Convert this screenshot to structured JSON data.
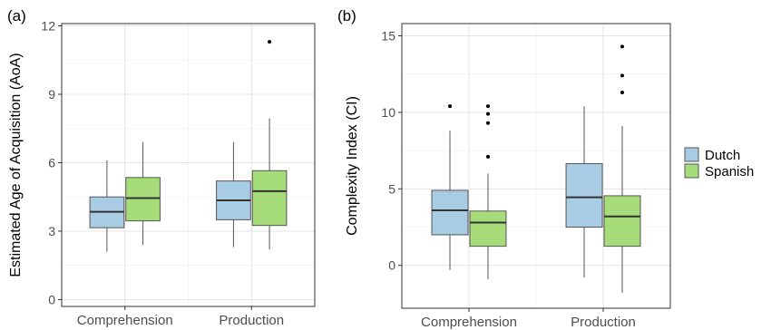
{
  "panels": {
    "a": {
      "label": "(a)"
    },
    "b": {
      "label": "(b)"
    }
  },
  "legend": {
    "items": [
      {
        "label": "Dutch",
        "color": "#a8cce3"
      },
      {
        "label": "Spanish",
        "color": "#a6dc7a"
      }
    ]
  },
  "chart_data": [
    {
      "type": "box",
      "panel_label": "(a)",
      "ylabel": "Estimated Age of Acquisition (AoA)",
      "xlabel": "",
      "categories": [
        "Comprehension",
        "Production"
      ],
      "ylim": [
        -0.3,
        12.1
      ],
      "yticks": [
        0,
        3,
        6,
        9,
        12
      ],
      "grid": true,
      "series": [
        {
          "name": "Dutch",
          "color": "#a8cce3",
          "boxes": [
            {
              "category": "Comprehension",
              "whisker_low": 2.1,
              "q1": 3.15,
              "median": 3.85,
              "q3": 4.5,
              "whisker_high": 6.1,
              "outliers": []
            },
            {
              "category": "Production",
              "whisker_low": 2.3,
              "q1": 3.5,
              "median": 4.35,
              "q3": 5.2,
              "whisker_high": 6.9,
              "outliers": []
            }
          ]
        },
        {
          "name": "Spanish",
          "color": "#a6dc7a",
          "boxes": [
            {
              "category": "Comprehension",
              "whisker_low": 2.4,
              "q1": 3.45,
              "median": 4.45,
              "q3": 5.35,
              "whisker_high": 6.9,
              "outliers": []
            },
            {
              "category": "Production",
              "whisker_low": 2.2,
              "q1": 3.25,
              "median": 4.75,
              "q3": 5.65,
              "whisker_high": 7.95,
              "outliers": [
                11.3
              ]
            }
          ]
        }
      ]
    },
    {
      "type": "box",
      "panel_label": "(b)",
      "ylabel": "Complexity Index (CI)",
      "xlabel": "",
      "categories": [
        "Comprehension",
        "Production"
      ],
      "ylim": [
        -2.8,
        15.8
      ],
      "yticks": [
        0,
        5,
        10,
        15
      ],
      "grid": true,
      "series": [
        {
          "name": "Dutch",
          "color": "#a8cce3",
          "boxes": [
            {
              "category": "Comprehension",
              "whisker_low": -0.3,
              "q1": 2.0,
              "median": 3.6,
              "q3": 4.9,
              "whisker_high": 8.8,
              "outliers": [
                10.4
              ]
            },
            {
              "category": "Production",
              "whisker_low": -0.8,
              "q1": 2.5,
              "median": 4.45,
              "q3": 6.65,
              "whisker_high": 10.4,
              "outliers": []
            }
          ]
        },
        {
          "name": "Spanish",
          "color": "#a6dc7a",
          "boxes": [
            {
              "category": "Comprehension",
              "whisker_low": -0.9,
              "q1": 1.25,
              "median": 2.8,
              "q3": 3.55,
              "whisker_high": 6.0,
              "outliers": [
                7.1,
                9.3,
                9.9,
                10.4
              ]
            },
            {
              "category": "Production",
              "whisker_low": -1.8,
              "q1": 1.25,
              "median": 3.2,
              "q3": 4.55,
              "whisker_high": 9.1,
              "outliers": [
                11.3,
                12.4,
                14.3
              ]
            }
          ]
        }
      ]
    }
  ]
}
